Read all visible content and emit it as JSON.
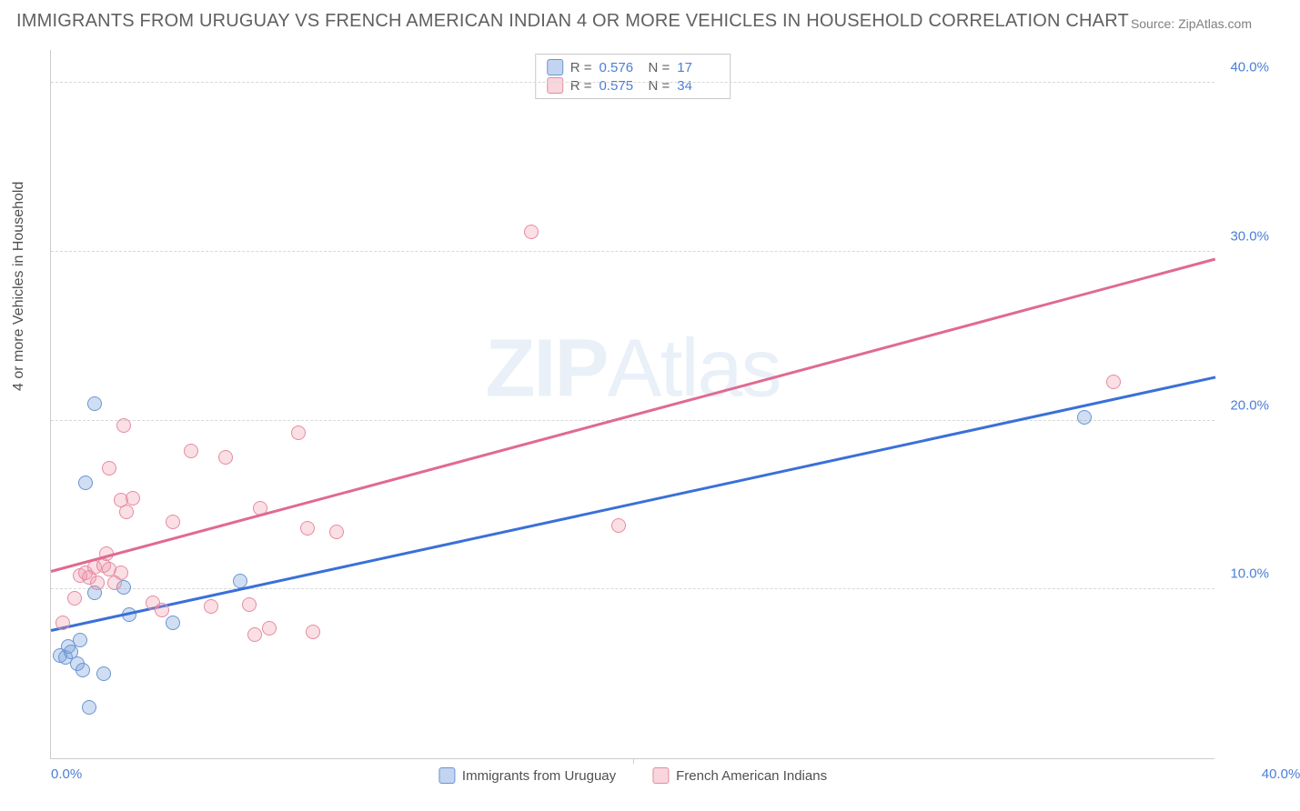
{
  "title": "IMMIGRANTS FROM URUGUAY VS FRENCH AMERICAN INDIAN 4 OR MORE VEHICLES IN HOUSEHOLD CORRELATION CHART",
  "source": "Source: ZipAtlas.com",
  "ylabel": "4 or more Vehicles in Household",
  "watermark_bold": "ZIP",
  "watermark_light": "Atlas",
  "chart": {
    "type": "scatter",
    "xlim": [
      0,
      40
    ],
    "ylim": [
      0,
      42
    ],
    "xtick_values": [
      0,
      20,
      40
    ],
    "xtick_labels": [
      "0.0%",
      "",
      "40.0%"
    ],
    "ytick_values": [
      10,
      20,
      30,
      40
    ],
    "ytick_labels": [
      "10.0%",
      "20.0%",
      "30.0%",
      "40.0%"
    ],
    "grid_color": "#d8d8d8",
    "background_color": "#ffffff",
    "axis_label_color": "#4a7fd8",
    "series": [
      {
        "name": "Immigrants from Uruguay",
        "color_fill": "rgba(120,160,220,0.35)",
        "color_stroke": "#6a95d0",
        "trend_color": "#3a70d8",
        "R": "0.576",
        "N": "17",
        "points": [
          [
            0.3,
            6.1
          ],
          [
            0.5,
            6.0
          ],
          [
            0.6,
            6.6
          ],
          [
            0.7,
            6.3
          ],
          [
            0.9,
            5.6
          ],
          [
            1.0,
            7.0
          ],
          [
            1.1,
            5.2
          ],
          [
            1.5,
            9.8
          ],
          [
            1.8,
            5.0
          ],
          [
            1.3,
            3.0
          ],
          [
            2.7,
            8.5
          ],
          [
            1.5,
            21.0
          ],
          [
            1.2,
            16.3
          ],
          [
            2.5,
            10.1
          ],
          [
            4.2,
            8.0
          ],
          [
            6.5,
            10.5
          ],
          [
            35.5,
            20.2
          ]
        ],
        "trend": {
          "x1": 0,
          "y1": 7.5,
          "x2": 40,
          "y2": 22.5
        }
      },
      {
        "name": "French American Indians",
        "color_fill": "rgba(240,150,170,0.30)",
        "color_stroke": "#e68ba2",
        "trend_color": "#e06a90",
        "R": "0.575",
        "N": "34",
        "points": [
          [
            0.4,
            8.0
          ],
          [
            0.8,
            9.5
          ],
          [
            1.0,
            10.8
          ],
          [
            1.2,
            11.0
          ],
          [
            1.3,
            10.7
          ],
          [
            1.5,
            11.3
          ],
          [
            1.6,
            10.4
          ],
          [
            1.8,
            11.4
          ],
          [
            1.9,
            12.1
          ],
          [
            2.0,
            11.2
          ],
          [
            2.2,
            10.4
          ],
          [
            2.4,
            11.0
          ],
          [
            2.0,
            17.2
          ],
          [
            2.4,
            15.3
          ],
          [
            2.6,
            14.6
          ],
          [
            2.8,
            15.4
          ],
          [
            3.5,
            9.2
          ],
          [
            3.8,
            8.8
          ],
          [
            4.2,
            14.0
          ],
          [
            4.8,
            18.2
          ],
          [
            5.5,
            9.0
          ],
          [
            6.0,
            17.8
          ],
          [
            6.8,
            9.1
          ],
          [
            7.0,
            7.3
          ],
          [
            7.2,
            14.8
          ],
          [
            7.5,
            7.7
          ],
          [
            8.5,
            19.3
          ],
          [
            8.8,
            13.6
          ],
          [
            9.0,
            7.5
          ],
          [
            9.8,
            13.4
          ],
          [
            16.5,
            31.2
          ],
          [
            19.5,
            13.8
          ],
          [
            2.5,
            19.7
          ],
          [
            36.5,
            22.3
          ]
        ],
        "trend": {
          "x1": 0,
          "y1": 11.0,
          "x2": 40,
          "y2": 29.5
        }
      }
    ]
  },
  "legend_top": {
    "r_label": "R =",
    "n_label": "N ="
  },
  "legend_bottom": [
    {
      "class": "blue",
      "label": "Immigrants from Uruguay"
    },
    {
      "class": "pink",
      "label": "French American Indians"
    }
  ]
}
